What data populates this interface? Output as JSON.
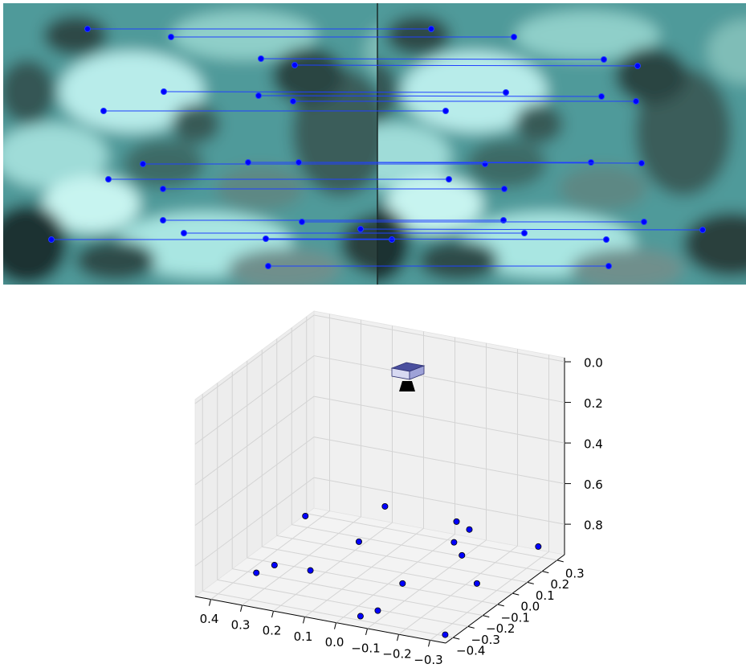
{
  "chart_data": {
    "type": "scatter3d",
    "color": "#0000ff",
    "x": [
      0.34,
      0.1,
      -0.1,
      -0.16,
      0.15,
      -0.13,
      -0.29,
      -0.16,
      0.32,
      0.34,
      0.21,
      -0.07,
      -0.26,
      -0.1,
      -0.04,
      -0.32
    ],
    "y": [
      0.06,
      0.09,
      0.15,
      0.11,
      0.02,
      0.07,
      0.3,
      0.06,
      -0.19,
      -0.27,
      -0.18,
      -0.15,
      -0.05,
      -0.38,
      -0.37,
      -0.39
    ],
    "z": [
      0.8,
      0.7,
      0.75,
      0.75,
      0.85,
      0.8,
      0.9,
      0.85,
      0.9,
      0.9,
      0.9,
      0.9,
      0.9,
      0.9,
      0.95,
      0.95
    ],
    "xlim": [
      -0.35,
      0.45
    ],
    "ylim": [
      -0.45,
      0.35
    ],
    "zlim": [
      -0.02,
      0.95
    ],
    "z_inverted": true,
    "grid": true,
    "xticks": [
      0.4,
      0.3,
      0.2,
      0.1,
      {
        "value": 0,
        "label": "0.0"
      },
      {
        "value": -0.1,
        "label": "−0.1"
      },
      {
        "value": -0.2,
        "label": "−0.2"
      },
      {
        "value": -0.3,
        "label": "−0.3"
      }
    ],
    "yticks": [
      {
        "value": -0.4,
        "label": "−0.4"
      },
      {
        "value": -0.3,
        "label": "−0.3"
      },
      {
        "value": -0.2,
        "label": "−0.2"
      },
      {
        "value": -0.1,
        "label": "−0.1"
      },
      {
        "value": 0,
        "label": "0.0"
      },
      0.1,
      0.2,
      0.3
    ],
    "zticks": [
      {
        "value": 0,
        "label": "0.0"
      },
      0.2,
      0.4,
      0.6,
      0.8
    ]
  }
}
